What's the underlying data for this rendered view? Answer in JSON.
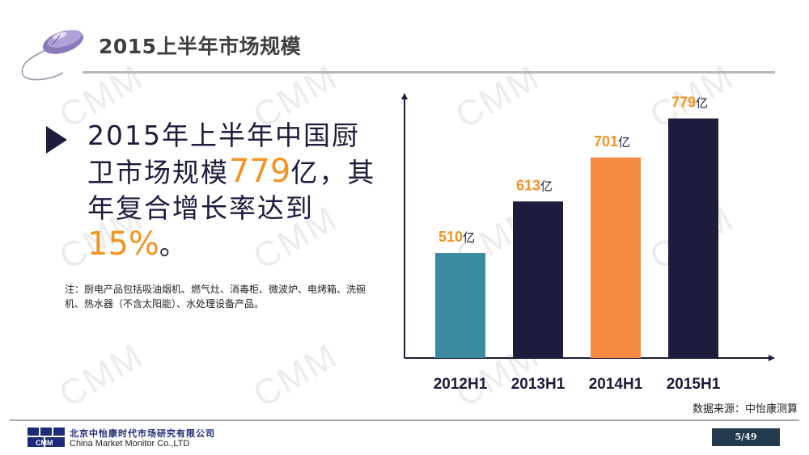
{
  "header": {
    "title": "2015上半年市场规模"
  },
  "watermark": "CMM",
  "main": {
    "headline_pre": "2015年上半年中国厨卫市场规模",
    "headline_value": "779",
    "headline_mid": "亿，其年复合增长率达到",
    "headline_rate": "15%",
    "headline_end": "。",
    "note": "注：厨电产品包括吸油烟机、燃气灶、消毒柜、微波炉、电烤箱、洗碗机、热水器（不含太阳能）、水处理设备产品。"
  },
  "chart_data": {
    "type": "bar",
    "categories": [
      "2012H1",
      "2013H1",
      "2014H1",
      "2015H1"
    ],
    "values": [
      510,
      613,
      701,
      779
    ],
    "value_unit": "亿",
    "bar_colors": [
      "#3a8aa0",
      "#1c1c3c",
      "#f58a42",
      "#1c1c3c"
    ],
    "label_colors": [
      "#f39321",
      "#f39321",
      "#f39321",
      "#f39321"
    ],
    "ylim": [
      300,
      830
    ],
    "grid": false,
    "xlabel": "",
    "ylabel": ""
  },
  "source": "数据来源：中怡康测算",
  "footer": {
    "company_cn": "北京中怡康时代市场研究有限公司",
    "company_en": "China Market Monitor Co.,LTD",
    "logo_text": "CMM",
    "page": "5/49"
  },
  "colors": {
    "accent": "#f39321",
    "navy": "#1c1c3c",
    "teal": "#3a8aa0",
    "orange": "#f58a42"
  },
  "icons": {
    "header_icon": "computer-mouse-icon"
  }
}
